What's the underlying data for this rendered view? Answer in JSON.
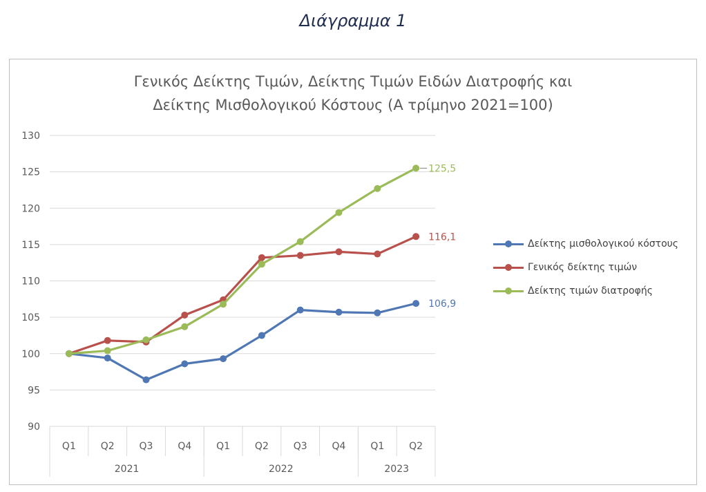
{
  "caption": "Διάγραμμα 1",
  "chart_data": {
    "type": "line",
    "title_lines": [
      "Γενικός Δείκτης Τιμών, Δείκτης Τιμών Ειδών Διατροφής και",
      "Δείκτης Μισθολογικού Κόστους (Α τρίμηνο 2021=100)"
    ],
    "categories": [
      "Q1",
      "Q2",
      "Q3",
      "Q4",
      "Q1",
      "Q2",
      "Q3",
      "Q4",
      "Q1",
      "Q2"
    ],
    "year_groups": [
      {
        "label": "2021",
        "span": 4
      },
      {
        "label": "2022",
        "span": 4
      },
      {
        "label": "2023",
        "span": 2
      }
    ],
    "ylim": [
      90,
      130
    ],
    "yticks": [
      90,
      95,
      100,
      105,
      110,
      115,
      120,
      125,
      130
    ],
    "grid": true,
    "legend_position": "right",
    "series": [
      {
        "name": "Δείκτης μισθολογικού κόστους",
        "color": "#4f77b3",
        "values": [
          100,
          99.4,
          96.4,
          98.6,
          99.3,
          102.5,
          106.0,
          105.7,
          105.6,
          106.9
        ],
        "end_label": "106,9"
      },
      {
        "name": "Γενικός δείκτης τιμών",
        "color": "#b8504b",
        "values": [
          100,
          101.8,
          101.6,
          105.3,
          107.4,
          113.2,
          113.5,
          114.0,
          113.7,
          116.1
        ],
        "end_label": "116,1"
      },
      {
        "name": "Δείκτης τιμών διατροφής",
        "color": "#9bbb59",
        "values": [
          100,
          100.4,
          101.9,
          103.7,
          106.8,
          112.3,
          115.4,
          119.4,
          122.7,
          125.5
        ],
        "end_label": "125,5"
      }
    ]
  }
}
